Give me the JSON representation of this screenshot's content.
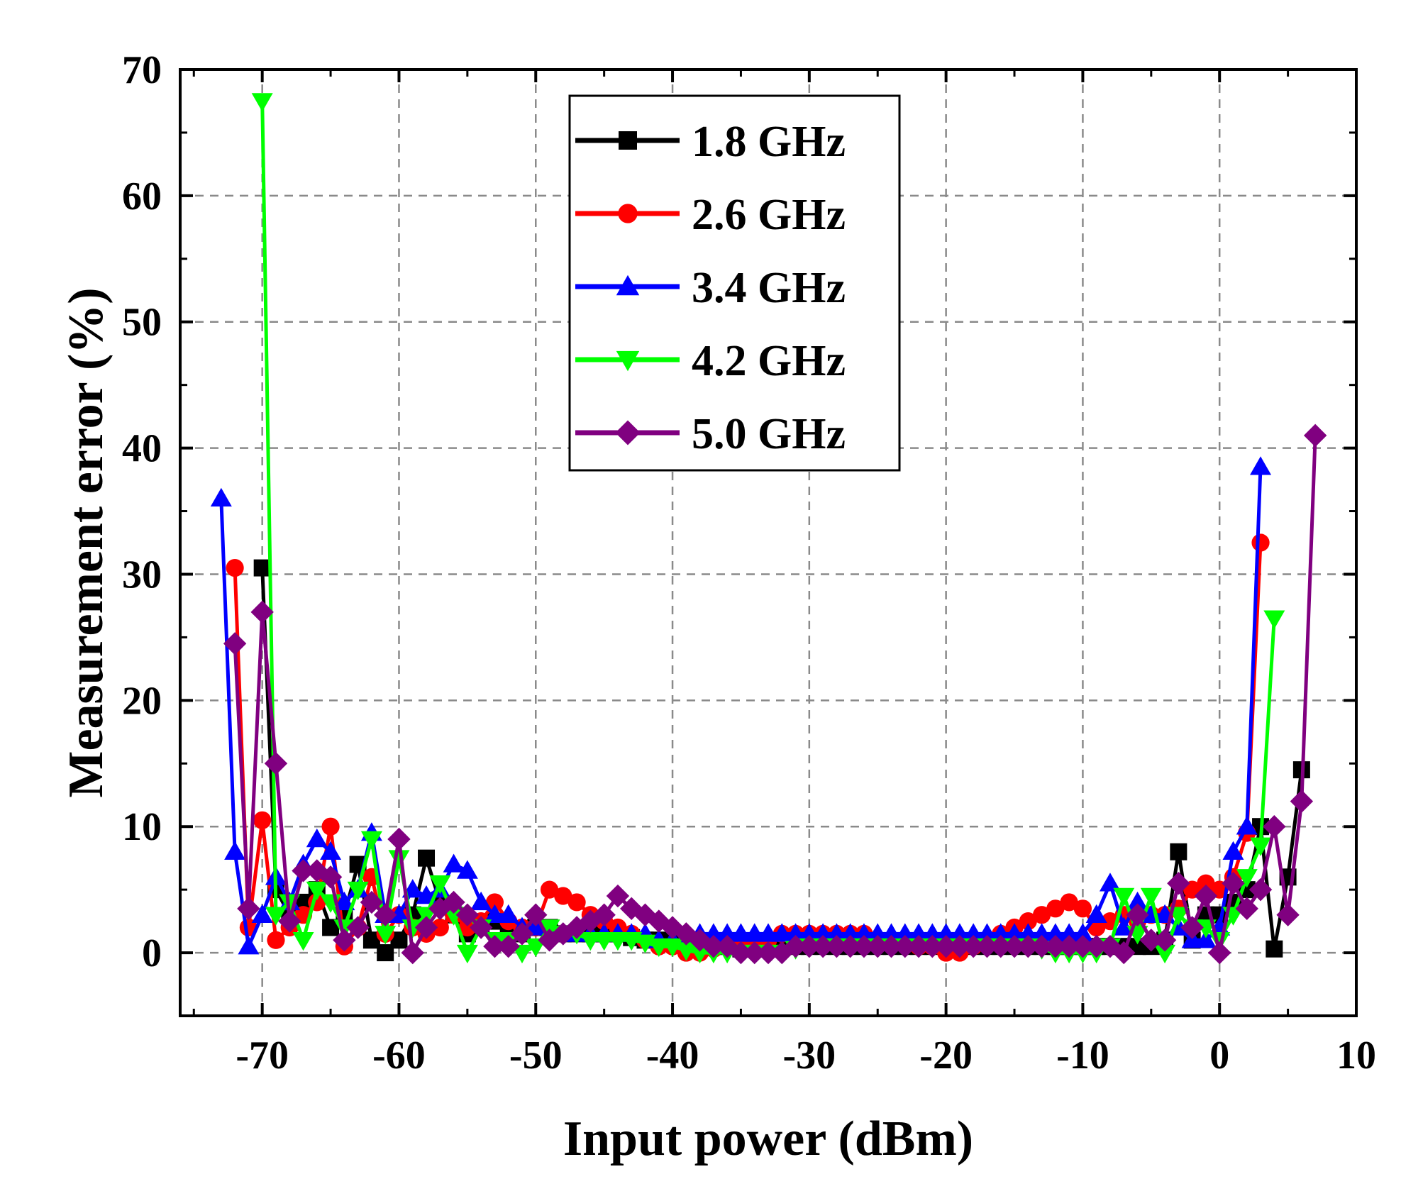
{
  "chart_data": {
    "type": "line",
    "title": "",
    "xlabel": "Input power (dBm)",
    "ylabel": "Measurement error (%)",
    "xlim": [
      -76,
      10
    ],
    "ylim": [
      -5,
      70
    ],
    "xticks": [
      -70,
      -60,
      -50,
      -40,
      -30,
      -20,
      -10,
      0,
      10
    ],
    "xtick_labels": [
      "-70",
      "-60",
      "-50",
      "-40",
      "-30",
      "-20",
      "-10",
      "0",
      "10"
    ],
    "yticks": [
      0,
      10,
      20,
      30,
      40,
      50,
      60,
      70
    ],
    "ytick_labels": [
      "0",
      "10",
      "20",
      "30",
      "40",
      "50",
      "60",
      "70"
    ],
    "grid": true,
    "legend_position": "top-center",
    "series": [
      {
        "name": "1.8 GHz",
        "color": "#000000",
        "marker": "square",
        "x": [
          -70,
          -69,
          -68,
          -67,
          -66,
          -65,
          -64,
          -63,
          -62,
          -61,
          -60,
          -59,
          -58,
          -57,
          -56,
          -55,
          -54,
          -53,
          -52,
          -51,
          -50,
          -49,
          -48,
          -47,
          -46,
          -45,
          -44,
          -43,
          -42,
          -41,
          -40,
          -39,
          -38,
          -37,
          -36,
          -35,
          -34,
          -33,
          -32,
          -31,
          -30,
          -29,
          -28,
          -27,
          -26,
          -25,
          -24,
          -23,
          -22,
          -21,
          -20,
          -19,
          -18,
          -17,
          -16,
          -15,
          -14,
          -13,
          -12,
          -11,
          -10,
          -9,
          -8,
          -7,
          -6,
          -5,
          -4,
          -3,
          -2,
          -1,
          0,
          1,
          2,
          3,
          4,
          5,
          6
        ],
        "y": [
          30.5,
          5,
          3,
          4,
          5,
          2,
          3,
          7,
          1,
          0,
          1,
          3,
          7.5,
          4,
          3,
          1.5,
          2,
          2.5,
          2,
          1.5,
          2,
          2,
          1.5,
          1.5,
          1.5,
          1.5,
          1.5,
          1.2,
          1,
          1,
          0.8,
          0.5,
          0.5,
          0.5,
          0.5,
          0.3,
          0.3,
          0.3,
          0.5,
          0.5,
          0.5,
          0.5,
          0.5,
          0.5,
          0.5,
          0.5,
          0.5,
          0.5,
          0.5,
          0.5,
          0.5,
          0.5,
          0.5,
          0.5,
          0.5,
          0.5,
          0.5,
          0.5,
          0.5,
          0.5,
          0.5,
          0.5,
          0.5,
          0.5,
          0.5,
          0.5,
          1,
          8,
          1,
          3,
          3,
          4,
          5,
          10,
          0.3,
          6,
          14.5
        ]
      },
      {
        "name": "2.6 GHz",
        "color": "#ff0000",
        "marker": "circle",
        "x": [
          -72,
          -71,
          -70,
          -69,
          -68,
          -67,
          -66,
          -65,
          -64,
          -63,
          -62,
          -61,
          -60,
          -59,
          -58,
          -57,
          -56,
          -55,
          -54,
          -53,
          -52,
          -51,
          -50,
          -49,
          -48,
          -47,
          -46,
          -45,
          -44,
          -43,
          -42,
          -41,
          -40,
          -39,
          -38,
          -37,
          -36,
          -35,
          -34,
          -33,
          -32,
          -31,
          -30,
          -29,
          -28,
          -27,
          -26,
          -25,
          -24,
          -23,
          -22,
          -21,
          -20,
          -19,
          -18,
          -17,
          -16,
          -15,
          -14,
          -13,
          -12,
          -11,
          -10,
          -9,
          -8,
          -7,
          -6,
          -5,
          -4,
          -3,
          -2,
          -1,
          0,
          1,
          2,
          3
        ],
        "y": [
          30.5,
          2,
          10.5,
          1,
          2,
          3,
          4,
          10,
          0.5,
          2,
          6,
          1.5,
          3,
          2,
          1.5,
          2,
          3,
          2,
          2.5,
          4,
          2.5,
          2,
          2,
          5,
          4.5,
          4,
          3,
          2.5,
          2,
          1.5,
          1,
          0.5,
          0.5,
          0,
          0,
          0.3,
          0.5,
          1,
          1,
          1,
          1.5,
          1.5,
          1.5,
          1.5,
          1.5,
          1.5,
          1.5,
          1,
          1,
          1,
          0.5,
          0.5,
          0,
          0,
          0.5,
          1,
          1.5,
          2,
          2.5,
          3,
          3.5,
          4,
          3.5,
          2,
          2.5,
          3,
          2.5,
          3,
          3,
          3.5,
          5,
          5.5,
          5,
          6,
          9.5,
          32.5
        ]
      },
      {
        "name": "3.4 GHz",
        "color": "#0000ff",
        "marker": "triangle-up",
        "x": [
          -73,
          -72,
          -71,
          -70,
          -69,
          -68,
          -67,
          -66,
          -65,
          -64,
          -63,
          -62,
          -61,
          -60,
          -59,
          -58,
          -57,
          -56,
          -55,
          -54,
          -53,
          -52,
          -51,
          -50,
          -49,
          -48,
          -47,
          -46,
          -45,
          -44,
          -43,
          -42,
          -41,
          -40,
          -39,
          -38,
          -37,
          -36,
          -35,
          -34,
          -33,
          -32,
          -31,
          -30,
          -29,
          -28,
          -27,
          -26,
          -25,
          -24,
          -23,
          -22,
          -21,
          -20,
          -19,
          -18,
          -17,
          -16,
          -15,
          -14,
          -13,
          -12,
          -11,
          -10,
          -9,
          -8,
          -7,
          -6,
          -5,
          -4,
          -3,
          -2,
          -1,
          0,
          1,
          2,
          3
        ],
        "y": [
          36,
          8,
          0.5,
          3,
          6,
          4,
          7,
          9,
          8,
          4,
          5,
          9.5,
          3,
          3,
          5,
          4.5,
          5,
          7,
          6.5,
          4,
          3,
          3,
          2,
          2,
          1.5,
          1.5,
          1.5,
          1.5,
          1.5,
          1.5,
          1.5,
          1.5,
          1,
          1,
          1,
          1.5,
          1.5,
          1.5,
          1.5,
          1.5,
          1.5,
          1.5,
          1.5,
          1.5,
          1.5,
          1.5,
          1.5,
          1.5,
          1.5,
          1.5,
          1.5,
          1.5,
          1.5,
          1.5,
          1.5,
          1.5,
          1.5,
          1.5,
          1.5,
          1.5,
          1.5,
          1.5,
          1.5,
          1.5,
          3,
          5.5,
          2,
          4,
          3,
          3,
          2,
          1,
          1,
          2,
          8,
          10,
          38.5
        ]
      },
      {
        "name": "4.2 GHz",
        "color": "#00ff00",
        "marker": "triangle-down",
        "x": [
          -70,
          -69,
          -68,
          -67,
          -66,
          -65,
          -64,
          -63,
          -62,
          -61,
          -60,
          -59,
          -58,
          -57,
          -56,
          -55,
          -54,
          -53,
          -52,
          -51,
          -50,
          -49,
          -48,
          -47,
          -46,
          -45,
          -44,
          -43,
          -42,
          -41,
          -40,
          -39,
          -38,
          -37,
          -36,
          -35,
          -34,
          -33,
          -32,
          -31,
          -30,
          -29,
          -28,
          -27,
          -26,
          -25,
          -24,
          -23,
          -22,
          -21,
          -20,
          -19,
          -18,
          -17,
          -16,
          -15,
          -14,
          -13,
          -12,
          -11,
          -10,
          -9,
          -8,
          -7,
          -6,
          -5,
          -4,
          -3,
          -2,
          -1,
          0,
          1,
          2,
          3,
          4
        ],
        "y": [
          67.5,
          3,
          4,
          1,
          5,
          4,
          2,
          5,
          9,
          1.5,
          7.5,
          2,
          3,
          5.5,
          3,
          0,
          2,
          1,
          1,
          0,
          0.5,
          2,
          1.5,
          1.5,
          1,
          1,
          1,
          1,
          0.8,
          0.5,
          0.5,
          0.2,
          0,
          0,
          0,
          0,
          0,
          0,
          0,
          0.3,
          0.5,
          0.5,
          0.5,
          0.5,
          0.5,
          0.5,
          0.5,
          0.5,
          0.5,
          0.5,
          0.5,
          0.5,
          0.5,
          0.5,
          0.5,
          0.5,
          0.5,
          0.3,
          0,
          0,
          0,
          0,
          0.5,
          4.5,
          1.5,
          4.5,
          0,
          3,
          2,
          2,
          1,
          3,
          6,
          8.5,
          26.5
        ]
      },
      {
        "name": "5.0 GHz",
        "color": "#800080",
        "marker": "diamond",
        "x": [
          -72,
          -71,
          -70,
          -69,
          -68,
          -67,
          -66,
          -65,
          -64,
          -63,
          -62,
          -61,
          -60,
          -59,
          -58,
          -57,
          -56,
          -55,
          -54,
          -53,
          -52,
          -51,
          -50,
          -49,
          -48,
          -47,
          -46,
          -45,
          -44,
          -43,
          -42,
          -41,
          -40,
          -39,
          -38,
          -37,
          -36,
          -35,
          -34,
          -33,
          -32,
          -31,
          -30,
          -29,
          -28,
          -27,
          -26,
          -25,
          -24,
          -23,
          -22,
          -21,
          -20,
          -19,
          -18,
          -17,
          -16,
          -15,
          -14,
          -13,
          -12,
          -11,
          -10,
          -9,
          -8,
          -7,
          -6,
          -5,
          -4,
          -3,
          -2,
          -1,
          0,
          1,
          2,
          3,
          4,
          5,
          6,
          7
        ],
        "y": [
          24.5,
          3.5,
          27,
          15,
          2.5,
          6.5,
          6.5,
          6,
          1,
          2,
          4,
          3,
          9,
          0,
          2,
          3.5,
          4,
          3,
          2,
          0.5,
          0.5,
          1.5,
          3,
          1,
          1.5,
          2,
          2.5,
          3,
          4.5,
          3.5,
          3,
          2.5,
          2,
          1.5,
          1,
          0.5,
          0.5,
          0,
          0,
          0,
          0,
          0.5,
          0.5,
          0.5,
          0.5,
          0.5,
          0.5,
          0.5,
          0.5,
          0.5,
          0.5,
          0.5,
          0.5,
          0.5,
          0.5,
          0.5,
          0.5,
          0.5,
          0.5,
          0.5,
          0.5,
          0.5,
          0.5,
          0.5,
          0.5,
          0,
          3,
          1,
          1,
          5.5,
          2,
          4.5,
          0,
          5.5,
          3.5,
          5,
          10,
          3,
          12,
          41
        ]
      }
    ]
  }
}
